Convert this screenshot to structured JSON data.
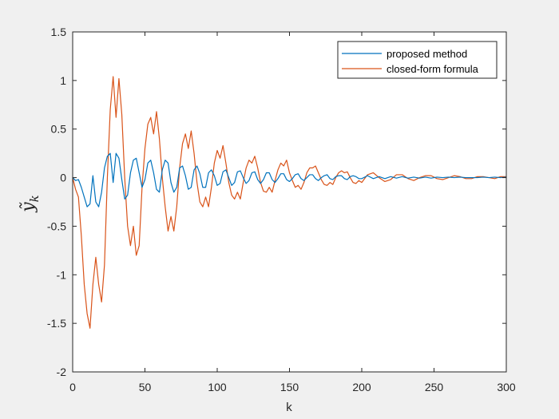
{
  "chart_data": {
    "type": "line",
    "title": "",
    "xlabel": "k",
    "ylabel": "ỹ",
    "ylabel_subscript": "k",
    "xlim": [
      0,
      300
    ],
    "ylim": [
      -2,
      1.5
    ],
    "xticks": [
      0,
      50,
      100,
      150,
      200,
      250,
      300
    ],
    "yticks": [
      -2,
      -1.5,
      -1,
      -0.5,
      0,
      0.5,
      1,
      1.5
    ],
    "xtick_labels": [
      "0",
      "50",
      "100",
      "150",
      "200",
      "250",
      "300"
    ],
    "ytick_labels": [
      "-2",
      "-1.5",
      "-1",
      "-0.5",
      "0",
      "0.5",
      "1",
      "1.5"
    ],
    "grid": false,
    "legend_position": "top-right",
    "series": [
      {
        "name": "proposed method",
        "color": "#0072BD",
        "x": [
          0,
          2,
          4,
          6,
          8,
          10,
          12,
          14,
          16,
          18,
          20,
          22,
          24,
          26,
          28,
          30,
          32,
          34,
          36,
          38,
          40,
          42,
          44,
          46,
          48,
          50,
          52,
          54,
          56,
          58,
          60,
          62,
          64,
          66,
          68,
          70,
          72,
          74,
          76,
          78,
          80,
          82,
          84,
          86,
          88,
          90,
          92,
          94,
          96,
          98,
          100,
          102,
          104,
          106,
          108,
          110,
          112,
          114,
          116,
          118,
          120,
          122,
          124,
          126,
          128,
          130,
          132,
          134,
          136,
          138,
          140,
          142,
          144,
          146,
          148,
          150,
          152,
          154,
          156,
          158,
          160,
          162,
          164,
          166,
          168,
          170,
          172,
          174,
          176,
          178,
          180,
          182,
          184,
          186,
          188,
          190,
          192,
          194,
          196,
          198,
          200,
          204,
          208,
          212,
          216,
          220,
          224,
          228,
          232,
          236,
          240,
          244,
          248,
          252,
          256,
          260,
          264,
          268,
          272,
          276,
          280,
          284,
          288,
          292,
          296,
          300
        ],
        "y": [
          0,
          -0.03,
          -0.02,
          -0.1,
          -0.2,
          -0.3,
          -0.27,
          0.02,
          -0.25,
          -0.3,
          -0.15,
          0.1,
          0.22,
          0.25,
          -0.05,
          0.25,
          0.2,
          -0.02,
          -0.22,
          -0.18,
          0.05,
          0.18,
          0.2,
          0.05,
          -0.1,
          -0.02,
          0.15,
          0.18,
          0.05,
          -0.12,
          -0.15,
          0.08,
          0.18,
          0.15,
          -0.05,
          -0.15,
          -0.1,
          0.1,
          0.12,
          0.02,
          -0.12,
          -0.1,
          0.08,
          0.12,
          0.04,
          -0.1,
          -0.1,
          0.05,
          0.08,
          0.02,
          -0.08,
          -0.06,
          0.06,
          0.08,
          0.0,
          -0.08,
          -0.05,
          0.06,
          0.07,
          0.0,
          -0.06,
          -0.03,
          0.05,
          0.06,
          -0.02,
          -0.06,
          -0.02,
          0.05,
          0.05,
          -0.02,
          -0.05,
          -0.01,
          0.04,
          0.04,
          -0.02,
          -0.04,
          -0.01,
          0.03,
          0.04,
          -0.01,
          -0.03,
          0.0,
          0.03,
          0.03,
          -0.01,
          -0.03,
          0.0,
          0.02,
          0.03,
          -0.01,
          -0.02,
          0.01,
          0.02,
          0.02,
          -0.01,
          -0.02,
          0.01,
          0.02,
          0.01,
          -0.01,
          -0.01,
          0.02,
          -0.01,
          0.01,
          -0.01,
          0.01,
          -0.005,
          0.01,
          -0.005,
          0.005,
          -0.005,
          0.005,
          -0.005,
          0.005,
          0.0,
          0.005,
          0.0,
          0.005,
          0.0,
          0.0,
          0.0,
          0.005,
          0.0,
          0.005,
          0.0,
          0.005
        ]
      },
      {
        "name": "closed-form formula",
        "color": "#D95319",
        "x": [
          0,
          2,
          4,
          6,
          8,
          10,
          12,
          14,
          16,
          18,
          20,
          22,
          24,
          26,
          28,
          30,
          32,
          34,
          36,
          38,
          40,
          42,
          44,
          46,
          48,
          50,
          52,
          54,
          56,
          58,
          60,
          62,
          64,
          66,
          68,
          70,
          72,
          74,
          76,
          78,
          80,
          82,
          84,
          86,
          88,
          90,
          92,
          94,
          96,
          98,
          100,
          102,
          104,
          106,
          108,
          110,
          112,
          114,
          116,
          118,
          120,
          122,
          124,
          126,
          128,
          130,
          132,
          134,
          136,
          138,
          140,
          142,
          144,
          146,
          148,
          150,
          152,
          154,
          156,
          158,
          160,
          162,
          164,
          166,
          168,
          170,
          172,
          174,
          176,
          178,
          180,
          182,
          184,
          186,
          188,
          190,
          192,
          194,
          196,
          198,
          200,
          204,
          208,
          212,
          216,
          220,
          224,
          228,
          232,
          236,
          240,
          244,
          248,
          252,
          256,
          260,
          264,
          268,
          272,
          276,
          280,
          284,
          288,
          292,
          296,
          300
        ],
        "y": [
          0,
          -0.12,
          -0.2,
          -0.6,
          -1.1,
          -1.4,
          -1.55,
          -1.1,
          -0.82,
          -1.1,
          -1.28,
          -0.9,
          0.0,
          0.7,
          1.04,
          0.62,
          1.02,
          0.65,
          0.0,
          -0.5,
          -0.7,
          -0.5,
          -0.8,
          -0.7,
          -0.1,
          0.3,
          0.55,
          0.62,
          0.45,
          0.68,
          0.4,
          0.0,
          -0.3,
          -0.55,
          -0.4,
          -0.55,
          -0.3,
          0.1,
          0.35,
          0.45,
          0.3,
          0.48,
          0.25,
          -0.05,
          -0.25,
          -0.3,
          -0.2,
          -0.3,
          -0.1,
          0.15,
          0.28,
          0.2,
          0.33,
          0.15,
          -0.05,
          -0.18,
          -0.22,
          -0.15,
          -0.22,
          -0.05,
          0.1,
          0.18,
          0.15,
          0.22,
          0.1,
          -0.05,
          -0.14,
          -0.15,
          -0.1,
          -0.15,
          -0.03,
          0.08,
          0.15,
          0.12,
          0.18,
          0.05,
          -0.03,
          -0.1,
          -0.08,
          -0.12,
          -0.05,
          0.05,
          0.1,
          0.1,
          0.12,
          0.05,
          -0.02,
          -0.07,
          -0.08,
          -0.05,
          -0.07,
          0.0,
          0.05,
          0.07,
          0.05,
          0.06,
          0.0,
          -0.05,
          -0.06,
          -0.03,
          -0.05,
          0.03,
          0.05,
          0.0,
          -0.04,
          -0.02,
          0.03,
          0.03,
          -0.01,
          -0.03,
          0.0,
          0.02,
          0.02,
          -0.01,
          -0.02,
          0.0,
          0.02,
          0.01,
          -0.01,
          -0.01,
          0.01,
          0.01,
          0.0,
          -0.01,
          0.01,
          0.01
        ]
      }
    ]
  }
}
